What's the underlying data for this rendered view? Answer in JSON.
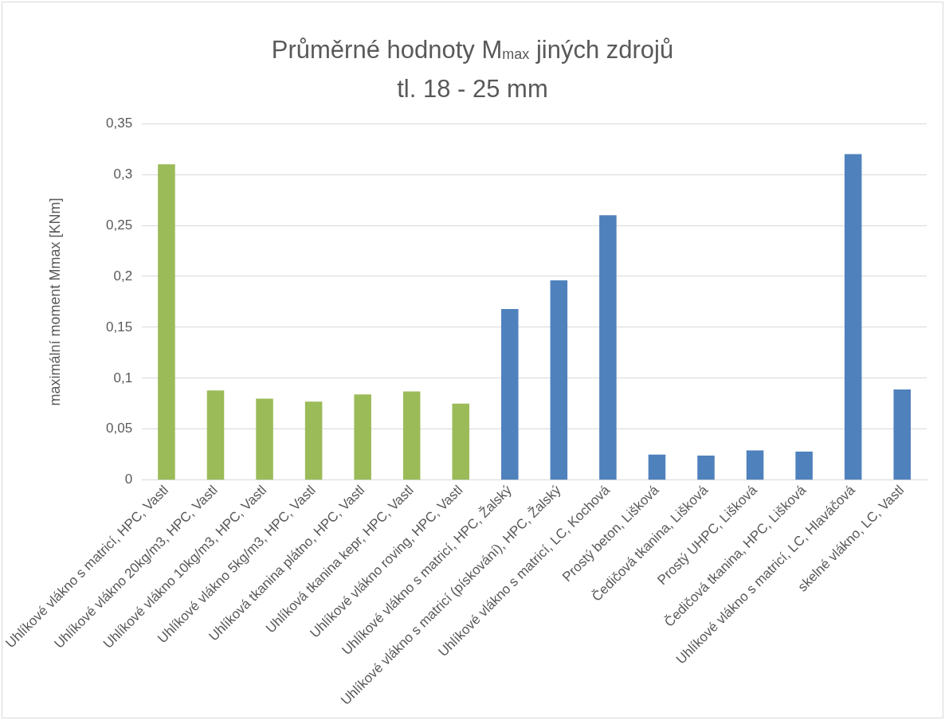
{
  "chart_data": {
    "type": "bar",
    "title": "Průměrné hodnoty M$_{max}$ jiných zdrojů",
    "subtitle": "tl. 18 - 25 mm",
    "ylabel": "maximální moment Mmax [KNm]",
    "categories": [
      "Uhlíkové vlákno s matricí, HPC, Vastl",
      "Uhlíkové vlákno 20kg/m3, HPC, Vastl",
      "Uhlíkové vlákno 10kg/m3, HPC, Vastl",
      "Uhlíkové vlákno 5kg/m3, HPC, Vastl",
      "Uhlíková tkanina plátno, HPC, Vastl",
      "Uhlíková tkanina kepr, HPC, Vastl",
      "Uhlíkové vlákno roving, HPC, Vastl",
      "Uhlíkové vlákno s matricí, HPC, Žalský",
      "Uhlíkové vlákno s matricí (pískování), HPC, Žalský",
      "Uhlíkové vlákno s matricí, LC, Kochová",
      "Prostý beton, Lišková",
      "Čedičová tkanina, Lišková",
      "Prostý UHPC, Lišková",
      "Čedičová tkanina, HPC, Lišková",
      "Uhlíkové vlákno s matricí, LC, Hlaváčová",
      "skelné vlákno, LC, Vastl"
    ],
    "values": [
      0.31,
      0.088,
      0.08,
      0.077,
      0.084,
      0.087,
      0.075,
      0.168,
      0.196,
      0.26,
      0.025,
      0.024,
      0.029,
      0.028,
      0.32,
      0.089
    ],
    "colors": [
      "#9bbb59",
      "#9bbb59",
      "#9bbb59",
      "#9bbb59",
      "#9bbb59",
      "#9bbb59",
      "#9bbb59",
      "#4f81bd",
      "#4f81bd",
      "#4f81bd",
      "#4f81bd",
      "#4f81bd",
      "#4f81bd",
      "#4f81bd",
      "#4f81bd",
      "#4f81bd"
    ],
    "ylim": [
      0,
      0.35
    ],
    "yticks": [
      {
        "value": 0,
        "label": "0"
      },
      {
        "value": 0.05,
        "label": "0,05"
      },
      {
        "value": 0.1,
        "label": "0,1"
      },
      {
        "value": 0.15,
        "label": "0,15"
      },
      {
        "value": 0.2,
        "label": "0,2"
      },
      {
        "value": 0.25,
        "label": "0,25"
      },
      {
        "value": 0.3,
        "label": "0,3"
      },
      {
        "value": 0.35,
        "label": "0,35"
      }
    ],
    "grid": "y",
    "legend": false
  }
}
